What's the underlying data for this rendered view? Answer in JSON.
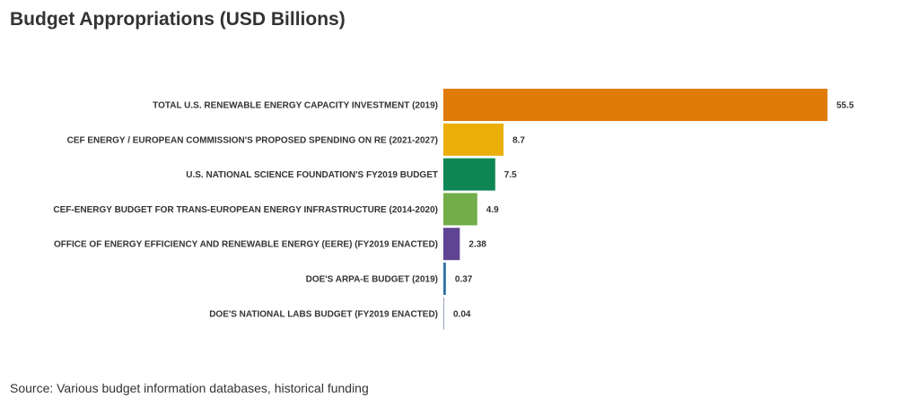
{
  "chart_data": {
    "type": "bar",
    "orientation": "horizontal",
    "title": "Budget Appropriations (USD Billions)",
    "source": "Source: Various budget information databases, historical funding",
    "categories": [
      "TOTAL U.S. RENEWABLE ENERGY CAPACITY INVESTMENT (2019)",
      "CEF ENERGY / EUROPEAN COMMISSION'S PROPOSED SPENDING ON RE (2021-2027)",
      "U.S. NATIONAL SCIENCE FOUNDATION'S FY2019 BUDGET",
      "CEF-ENERGY BUDGET FOR TRANS-EUROPEAN ENERGY INFRASTRUCTURE (2014-2020)",
      "OFFICE OF ENERGY EFFICIENCY AND RENEWABLE ENERGY (EERE) (FY2019 ENACTED)",
      "DOE'S ARPA-E BUDGET (2019)",
      "DOE'S NATIONAL LABS BUDGET (FY2019 ENACTED)"
    ],
    "values": [
      55.5,
      8.7,
      7.5,
      4.9,
      2.38,
      0.37,
      0.04
    ],
    "value_labels": [
      "55.5",
      "8.7",
      "7.5",
      "4.9",
      "2.38",
      "0.37",
      "0.04"
    ],
    "colors": [
      "#E07B08",
      "#EBAF0C",
      "#0E8754",
      "#72AD4A",
      "#5E4493",
      "#2F73A8",
      "#9AA6B2"
    ],
    "xlim": [
      0,
      55.5
    ],
    "grid": false,
    "legend": "none"
  }
}
